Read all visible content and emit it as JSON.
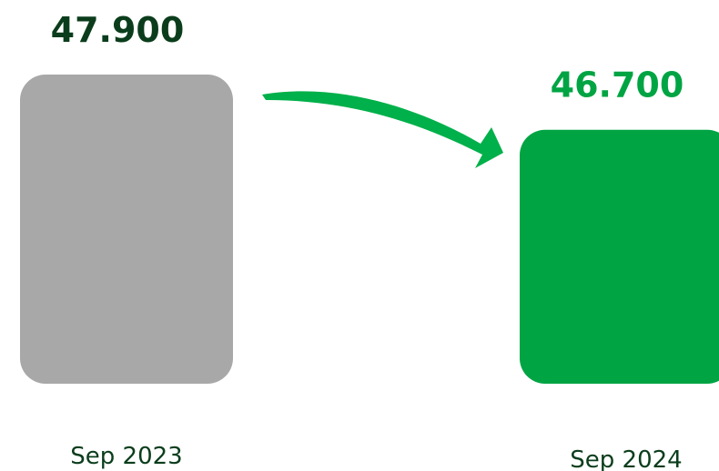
{
  "chart_data": {
    "type": "bar",
    "categories": [
      "Sep 2023",
      "Sep 2024"
    ],
    "values": [
      47900,
      46700
    ],
    "data_labels": [
      "47.900",
      "46.700"
    ],
    "title": "",
    "xlabel": "",
    "ylabel": "",
    "ylim": [
      0,
      47900
    ],
    "grid": false,
    "legend": "none",
    "annotation": "arrow-from-first-to-second-bar"
  },
  "colors": {
    "bar_previous": "#a8a8a8",
    "bar_current": "#00a443",
    "label_previous": "#0b3d1c",
    "label_current": "#00a443",
    "arrow": "#00b04a",
    "category_text": "#0b3d1c"
  },
  "icons": {
    "trend_arrow": "curved-arrow-icon"
  }
}
